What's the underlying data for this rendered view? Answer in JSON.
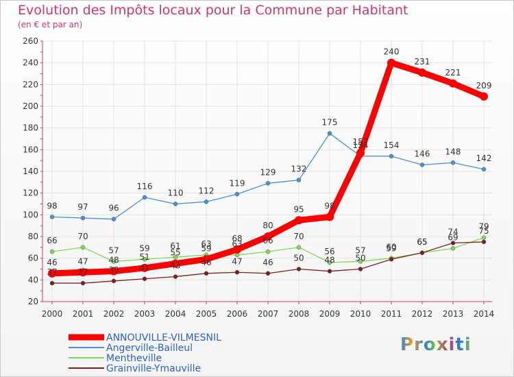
{
  "chart_data": {
    "type": "line",
    "title": "Evolution des Impôts locaux pour la Commune par Habitant",
    "subtitle": "(en € et par an)",
    "categories": [
      "2000",
      "2001",
      "2002",
      "2003",
      "2004",
      "2005",
      "2006",
      "2007",
      "2008",
      "2009",
      "2010",
      "2011",
      "2012",
      "2013",
      "2014"
    ],
    "yticks": [
      20,
      40,
      60,
      80,
      100,
      120,
      140,
      160,
      180,
      200,
      220,
      240,
      260
    ],
    "ylim": [
      20,
      260
    ],
    "series": [
      {
        "name": "ANNOUVILLE-VILMESNIL",
        "color": "#ff0000",
        "values": [
          46,
          47,
          48,
          51,
          55,
          59,
          68,
          80,
          95,
          98,
          157,
          240,
          231,
          221,
          209
        ]
      },
      {
        "name": "Angerville-Bailleul",
        "color": "#4a90d9",
        "values": [
          98,
          97,
          96,
          116,
          110,
          112,
          119,
          129,
          132,
          175,
          154,
          154,
          146,
          148,
          142
        ]
      },
      {
        "name": "Mentheville",
        "color": "#7ed957",
        "values": [
          66,
          70,
          57,
          59,
          61,
          63,
          63,
          66,
          70,
          56,
          57,
          60,
          65,
          69,
          79
        ]
      },
      {
        "name": "Grainville-Ymauville",
        "color": "#7a1f1f",
        "values": [
          37,
          37,
          39,
          41,
          43,
          46,
          47,
          46,
          50,
          48,
          50,
          59,
          65,
          74,
          75
        ]
      }
    ]
  },
  "logo": {
    "text": "Proxiti"
  }
}
